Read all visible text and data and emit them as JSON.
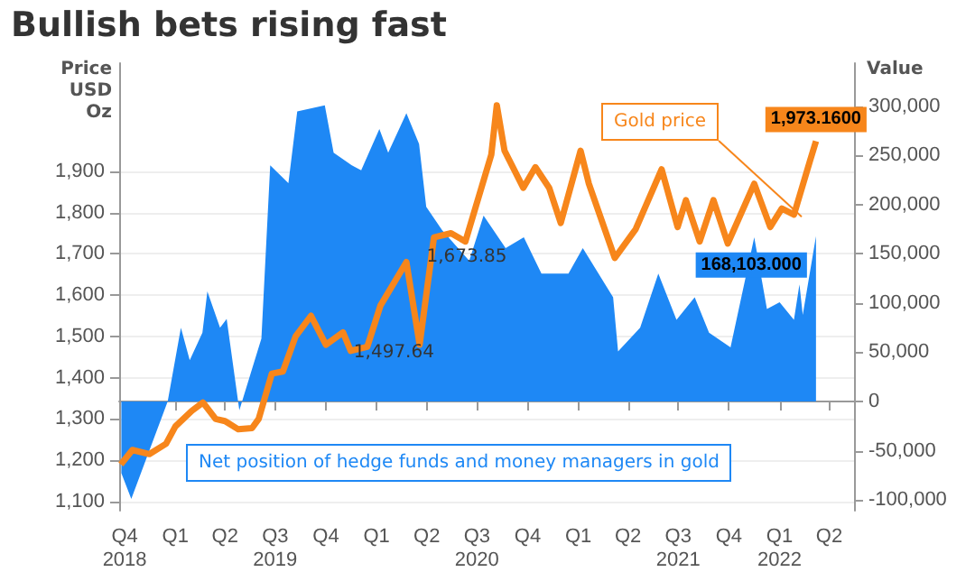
{
  "chart_data": {
    "type": "area",
    "title": "Bullish bets rising fast",
    "ylabel": "Price USD Oz",
    "y2label": "Value",
    "annotations": [
      {
        "text": "Gold price",
        "x": "2022-02-10",
        "y": 1790
      },
      "Net position of hedge funds and money managers in gold",
      {
        "text": "1,497.64",
        "x": "2019-12-20",
        "y": 1460
      },
      {
        "text": "1,673.85",
        "x": "2020-04-30",
        "y": 1690
      }
    ],
    "xlim": [
      "2018-09-21",
      "2022-05-16"
    ],
    "xticks": [
      {
        "value": "2018-10-01",
        "label": "Q4\n2018"
      },
      {
        "value": "2019-01-01",
        "label": "Q1"
      },
      {
        "value": "2019-04-01",
        "label": "Q2"
      },
      {
        "value": "2019-07-01",
        "label": "Q3\n2019"
      },
      {
        "value": "2019-10-01",
        "label": "Q4"
      },
      {
        "value": "2020-01-01",
        "label": "Q1"
      },
      {
        "value": "2020-04-01",
        "label": "Q2"
      },
      {
        "value": "2020-07-01",
        "label": "Q3\n2020"
      },
      {
        "value": "2020-10-01",
        "label": "Q4"
      },
      {
        "value": "2021-01-01",
        "label": "Q1"
      },
      {
        "value": "2021-04-01",
        "label": "Q2"
      },
      {
        "value": "2021-07-01",
        "label": "Q3\n2021"
      },
      {
        "value": "2021-10-01",
        "label": "Q4"
      },
      {
        "value": "2022-01-01",
        "label": "Q1\n2022"
      },
      {
        "value": "2022-04-01",
        "label": "Q2"
      }
    ],
    "ylim": [
      1078,
      2162
    ],
    "yticks": [
      {
        "value": 1100,
        "label": "1,100"
      },
      {
        "value": 1200,
        "label": "1,200"
      },
      {
        "value": 1300,
        "label": "1,300"
      },
      {
        "value": 1400,
        "label": "1,400"
      },
      {
        "value": 1500,
        "label": "1,500"
      },
      {
        "value": 1600,
        "label": "1,600"
      },
      {
        "value": 1700,
        "label": "1,700"
      },
      {
        "value": 1800,
        "label": "1,800"
      },
      {
        "value": 1900,
        "label": "1,900"
      }
    ],
    "y2lim": [
      -111000,
      344000
    ],
    "y2ticks": [
      {
        "value": -100000,
        "label": "-100,000"
      },
      {
        "value": -50000,
        "label": "-50,000"
      },
      0,
      {
        "value": 50000,
        "label": "50,000"
      },
      {
        "value": 100000,
        "label": "100,000"
      },
      {
        "value": 150000,
        "label": "150,000"
      },
      {
        "value": 200000,
        "label": "200,000"
      },
      {
        "value": 250000,
        "label": "250,000"
      },
      {
        "value": 300000,
        "label": "300,000"
      }
    ],
    "grid": "y",
    "marker": "none",
    "series": [
      {
        "type": "area",
        "axis": "y2",
        "color": "#1e88f5",
        "x": [
          "2018-09-25",
          "2018-10-13",
          "2018-12-18",
          "2019-01-11",
          "2019-01-27",
          "2019-02-19",
          "2019-02-28",
          "2019-03-23",
          "2019-04-04",
          "2019-04-27",
          "2019-05-20",
          "2019-06-06",
          "2019-06-22",
          "2019-07-25",
          "2019-08-10",
          "2019-09-29",
          "2019-10-15",
          "2019-11-17",
          "2019-12-04",
          "2020-01-06",
          "2020-01-22",
          "2020-02-24",
          "2020-03-18",
          "2020-03-31",
          "2020-04-29",
          "2020-06-17",
          "2020-07-13",
          "2020-08-22",
          "2020-09-24",
          "2020-10-26",
          "2020-12-14",
          "2021-01-09",
          "2021-03-05",
          "2021-03-14",
          "2021-04-23",
          "2021-05-26",
          "2021-06-28",
          "2021-07-31",
          "2021-08-26",
          "2021-10-04",
          "2021-11-16",
          "2021-12-09",
          "2022-01-01",
          "2022-01-27",
          "2022-02-06",
          "2022-02-12",
          "2022-03-08"
        ],
        "values": [
          -73000,
          -99000,
          0,
          75000,
          42000,
          70000,
          112000,
          75000,
          84000,
          -9000,
          33000,
          64000,
          240000,
          222000,
          295000,
          301000,
          253000,
          240000,
          235000,
          277000,
          253000,
          293000,
          262000,
          198000,
          174000,
          143000,
          189000,
          156000,
          167000,
          130000,
          130000,
          156000,
          106000,
          51000,
          75000,
          130000,
          83000,
          106000,
          70000,
          55000,
          167000,
          94000,
          101000,
          83000,
          119000,
          88000,
          168103
        ],
        "value_labels": [
          null,
          null,
          null,
          null,
          null,
          null,
          null,
          null,
          null,
          null,
          null,
          null,
          null,
          null,
          null,
          null,
          null,
          null,
          null,
          null,
          null,
          null,
          null,
          null,
          null,
          null,
          null,
          null,
          null,
          null,
          null,
          null,
          null,
          null,
          null,
          null,
          null,
          null,
          null,
          null,
          null,
          null,
          null,
          null,
          null,
          null,
          "168,103.000"
        ]
      },
      {
        "type": "line",
        "axis": "y",
        "color": "#f7861b",
        "x": [
          "2018-09-24",
          "2018-10-15",
          "2018-11-15",
          "2018-12-15",
          "2019-01-01",
          "2019-01-31",
          "2019-02-20",
          "2019-03-15",
          "2019-04-01",
          "2019-04-25",
          "2019-05-20",
          "2019-06-01",
          "2019-06-25",
          "2019-07-15",
          "2019-08-07",
          "2019-09-04",
          "2019-10-01",
          "2019-11-01",
          "2019-11-15",
          "2019-12-15",
          "2020-01-08",
          "2020-02-24",
          "2020-03-19",
          "2020-04-14",
          "2020-05-15",
          "2020-06-10",
          "2020-07-27",
          "2020-08-06",
          "2020-08-20",
          "2020-09-23",
          "2020-10-15",
          "2020-11-09",
          "2020-11-30",
          "2021-01-05",
          "2021-01-20",
          "2021-03-08",
          "2021-04-15",
          "2021-06-01",
          "2021-06-30",
          "2021-07-15",
          "2021-08-09",
          "2021-09-03",
          "2021-09-29",
          "2021-11-16",
          "2021-12-15",
          "2022-01-05",
          "2022-01-27",
          "2022-02-25",
          "2022-03-08"
        ],
        "values": [
          1190,
          1225,
          1215,
          1240,
          1282,
          1320,
          1340,
          1300,
          1295,
          1275,
          1278,
          1300,
          1410,
          1415,
          1500,
          1550,
          1480,
          1510,
          1465,
          1475,
          1575,
          1680,
          1480,
          1740,
          1750,
          1730,
          1940,
          2060,
          1950,
          1860,
          1910,
          1860,
          1775,
          1950,
          1870,
          1690,
          1760,
          1905,
          1765,
          1830,
          1730,
          1830,
          1725,
          1870,
          1765,
          1810,
          1795,
          1925,
          1973.16
        ],
        "value_labels": [
          null,
          null,
          null,
          null,
          null,
          null,
          null,
          null,
          null,
          null,
          null,
          null,
          null,
          null,
          null,
          null,
          null,
          null,
          null,
          null,
          null,
          null,
          null,
          null,
          null,
          null,
          null,
          null,
          null,
          null,
          null,
          null,
          null,
          null,
          null,
          null,
          null,
          null,
          null,
          null,
          null,
          null,
          null,
          null,
          null,
          null,
          null,
          null,
          "1,973.1600"
        ]
      }
    ]
  }
}
